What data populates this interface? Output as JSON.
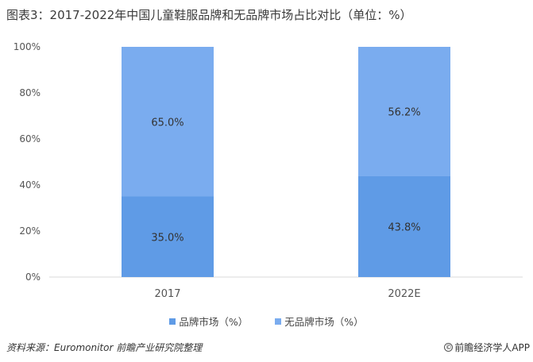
{
  "chart_data": {
    "type": "bar",
    "stacked": true,
    "title": "图表3：2017-2022年中国儿童鞋服品牌和无品牌市场占比对比（单位：%）",
    "categories": [
      "2017",
      "2022E"
    ],
    "series": [
      {
        "name": "品牌市场（%）",
        "values": [
          35.0,
          43.8
        ],
        "labels": [
          "35.0%",
          "43.8%"
        ],
        "color": "#5f9be6"
      },
      {
        "name": "无品牌市场（%）",
        "values": [
          65.0,
          56.2
        ],
        "labels": [
          "65.0%",
          "56.2%"
        ],
        "color": "#7aacef"
      }
    ],
    "ylim": [
      0,
      100
    ],
    "yticks": [
      "0%",
      "20%",
      "40%",
      "60%",
      "80%",
      "100%"
    ],
    "grid": false,
    "legend_position": "bottom"
  },
  "footer": {
    "source": "资料来源：Euromonitor 前瞻产业研究院整理",
    "brand": "前瞻经济学人APP",
    "brand_icon": "qianzhan-logo-icon"
  }
}
